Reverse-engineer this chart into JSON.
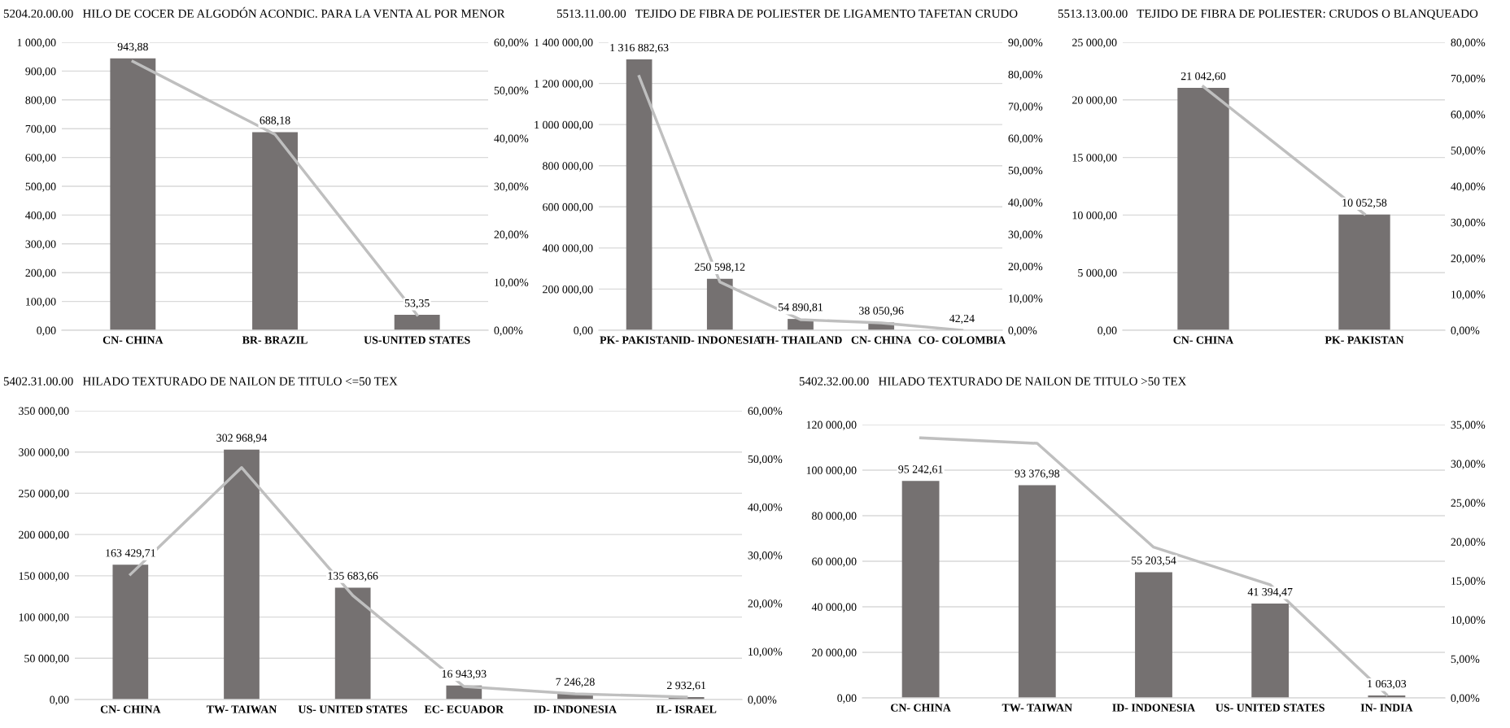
{
  "chart_data": [
    {
      "type": "bar",
      "title": "5204.20.00.00   HILO DE COCER DE ALGODÓN ACONDIC. PARA LA VENTA AL POR MENOR",
      "categories": [
        "CN- CHINA",
        "BR- BRAZIL",
        "US-UNITED STATES"
      ],
      "grid": "y",
      "ylim": [
        0,
        1000
      ],
      "yticks": [
        {
          "value": 0,
          "label": "0,00"
        },
        {
          "value": 100,
          "label": "100,00"
        },
        {
          "value": 200,
          "label": "200,00"
        },
        {
          "value": 300,
          "label": "300,00"
        },
        {
          "value": 400,
          "label": "400,00"
        },
        {
          "value": 500,
          "label": "500,00"
        },
        {
          "value": 600,
          "label": "600,00"
        },
        {
          "value": 700,
          "label": "700,00"
        },
        {
          "value": 800,
          "label": "800,00"
        },
        {
          "value": 900,
          "label": "900,00"
        },
        {
          "value": 1000,
          "label": "1 000,00"
        }
      ],
      "y2lim": [
        0,
        60
      ],
      "y2ticks": [
        {
          "value": 0,
          "label": "0,00%"
        },
        {
          "value": 10,
          "label": "10,00%"
        },
        {
          "value": 20,
          "label": "20,00%"
        },
        {
          "value": 30,
          "label": "30,00%"
        },
        {
          "value": 40,
          "label": "40,00%"
        },
        {
          "value": 50,
          "label": "50,00%"
        },
        {
          "value": 60,
          "label": "60,00%"
        }
      ],
      "series": [
        {
          "type": "bar",
          "color": "#757171",
          "values": [
            943.88,
            688.18,
            53.35
          ],
          "value_labels": [
            "943,88",
            "688,18",
            "53,35"
          ]
        },
        {
          "type": "line",
          "axis": "y2",
          "color": "#bfbfbf",
          "values": [
            56.0,
            40.8,
            3.2
          ]
        }
      ]
    },
    {
      "type": "bar",
      "title": "5513.11.00.00   TEJIDO DE FIBRA DE POLIESTER DE LIGAMENTO TAFETAN CRUDO",
      "categories": [
        "PK- PAKISTAN",
        "ID- INDONESIA",
        "TH- THAILAND",
        "CN- CHINA",
        "CO- COLOMBIA"
      ],
      "grid": "y",
      "ylim": [
        0,
        1400000
      ],
      "yticks": [
        {
          "value": 0,
          "label": "0,00"
        },
        {
          "value": 200000,
          "label": "200 000,00"
        },
        {
          "value": 400000,
          "label": "400 000,00"
        },
        {
          "value": 600000,
          "label": "600 000,00"
        },
        {
          "value": 800000,
          "label": "800 000,00"
        },
        {
          "value": 1000000,
          "label": "1 000 000,00"
        },
        {
          "value": 1200000,
          "label": "1 200 000,00"
        },
        {
          "value": 1400000,
          "label": "1 400 000,00"
        }
      ],
      "y2lim": [
        0,
        90
      ],
      "y2ticks": [
        {
          "value": 0,
          "label": "0,00%"
        },
        {
          "value": 10,
          "label": "10,00%"
        },
        {
          "value": 20,
          "label": "20,00%"
        },
        {
          "value": 30,
          "label": "30,00%"
        },
        {
          "value": 40,
          "label": "40,00%"
        },
        {
          "value": 50,
          "label": "50,00%"
        },
        {
          "value": 60,
          "label": "60,00%"
        },
        {
          "value": 70,
          "label": "70,00%"
        },
        {
          "value": 80,
          "label": "80,00%"
        },
        {
          "value": 90,
          "label": "90,00%"
        }
      ],
      "series": [
        {
          "type": "bar",
          "color": "#757171",
          "values": [
            1316882.63,
            250598.12,
            54890.81,
            38050.96,
            42.24
          ],
          "value_labels": [
            "1 316 882,63",
            "250 598,12",
            "54 890,81",
            "38 050,96",
            "42,24"
          ]
        },
        {
          "type": "line",
          "axis": "y2",
          "color": "#bfbfbf",
          "values": [
            79.3,
            15.1,
            3.3,
            2.3,
            0.0
          ]
        }
      ]
    },
    {
      "type": "bar",
      "title": "5513.13.00.00   TEJIDO DE FIBRA DE POLIESTER: CRUDOS O BLANQUEADO",
      "categories": [
        "CN- CHINA",
        "PK- PAKISTAN"
      ],
      "grid": "y",
      "ylim": [
        0,
        25000
      ],
      "yticks": [
        {
          "value": 0,
          "label": "0,00"
        },
        {
          "value": 5000,
          "label": "5 000,00"
        },
        {
          "value": 10000,
          "label": "10 000,00"
        },
        {
          "value": 15000,
          "label": "15 000,00"
        },
        {
          "value": 20000,
          "label": "20 000,00"
        },
        {
          "value": 25000,
          "label": "25 000,00"
        }
      ],
      "y2lim": [
        0,
        80
      ],
      "y2ticks": [
        {
          "value": 0,
          "label": "0,00%"
        },
        {
          "value": 10,
          "label": "10,00%"
        },
        {
          "value": 20,
          "label": "20,00%"
        },
        {
          "value": 30,
          "label": "30,00%"
        },
        {
          "value": 40,
          "label": "40,00%"
        },
        {
          "value": 50,
          "label": "50,00%"
        },
        {
          "value": 60,
          "label": "60,00%"
        },
        {
          "value": 70,
          "label": "70,00%"
        },
        {
          "value": 80,
          "label": "80,00%"
        }
      ],
      "series": [
        {
          "type": "bar",
          "color": "#757171",
          "values": [
            21042.6,
            10052.58
          ],
          "value_labels": [
            "21 042,60",
            "10 052,58"
          ]
        },
        {
          "type": "line",
          "axis": "y2",
          "color": "#bfbfbf",
          "values": [
            67.7,
            32.3
          ]
        }
      ]
    },
    {
      "type": "bar",
      "title": "5402.31.00.00   HILADO TEXTURADO DE NAILON DE TITULO <=50 TEX",
      "categories": [
        "CN- CHINA",
        "TW- TAIWAN",
        "US- UNITED STATES",
        "EC- ECUADOR",
        "ID- INDONESIA",
        "IL- ISRAEL"
      ],
      "grid": "y",
      "ylim": [
        0,
        350000
      ],
      "yticks": [
        {
          "value": 0,
          "label": "0,00"
        },
        {
          "value": 50000,
          "label": "50 000,00"
        },
        {
          "value": 100000,
          "label": "100 000,00"
        },
        {
          "value": 150000,
          "label": "150 000,00"
        },
        {
          "value": 200000,
          "label": "200 000,00"
        },
        {
          "value": 250000,
          "label": "250 000,00"
        },
        {
          "value": 300000,
          "label": "300 000,00"
        },
        {
          "value": 350000,
          "label": "350 000,00"
        }
      ],
      "y2lim": [
        0,
        60
      ],
      "y2ticks": [
        {
          "value": 0,
          "label": "0,00%"
        },
        {
          "value": 10,
          "label": "10,00%"
        },
        {
          "value": 20,
          "label": "20,00%"
        },
        {
          "value": 30,
          "label": "30,00%"
        },
        {
          "value": 40,
          "label": "40,00%"
        },
        {
          "value": 50,
          "label": "50,00%"
        },
        {
          "value": 60,
          "label": "60,00%"
        }
      ],
      "series": [
        {
          "type": "bar",
          "color": "#757171",
          "values": [
            163429.71,
            302968.94,
            135683.66,
            16943.93,
            7246.28,
            2932.61
          ],
          "value_labels": [
            "163 429,71",
            "302 968,94",
            "135 683,66",
            "16 943,93",
            "7 246,28",
            "2 932,61"
          ]
        },
        {
          "type": "line",
          "axis": "y2",
          "color": "#bfbfbf",
          "values": [
            26.0,
            48.2,
            21.6,
            2.7,
            1.2,
            0.5
          ]
        }
      ]
    },
    {
      "type": "bar",
      "title": "5402.32.00.00   HILADO TEXTURADO DE NAILON DE TITULO >50 TEX",
      "categories": [
        "CN- CHINA",
        "TW- TAIWAN",
        "ID- INDONESIA",
        "US- UNITED STATES",
        "IN- INDIA"
      ],
      "grid": "y",
      "ylim": [
        0,
        120000
      ],
      "yticks": [
        {
          "value": 0,
          "label": "0,00"
        },
        {
          "value": 20000,
          "label": "20 000,00"
        },
        {
          "value": 40000,
          "label": "40 000,00"
        },
        {
          "value": 60000,
          "label": "60 000,00"
        },
        {
          "value": 80000,
          "label": "80 000,00"
        },
        {
          "value": 100000,
          "label": "100 000,00"
        },
        {
          "value": 120000,
          "label": "120 000,00"
        }
      ],
      "y2lim": [
        0,
        35
      ],
      "y2ticks": [
        {
          "value": 0,
          "label": "0,00%"
        },
        {
          "value": 5,
          "label": "5,00%"
        },
        {
          "value": 10,
          "label": "10,00%"
        },
        {
          "value": 15,
          "label": "15,00%"
        },
        {
          "value": 20,
          "label": "20,00%"
        },
        {
          "value": 25,
          "label": "25,00%"
        },
        {
          "value": 30,
          "label": "30,00%"
        },
        {
          "value": 35,
          "label": "35,00%"
        }
      ],
      "series": [
        {
          "type": "bar",
          "color": "#757171",
          "values": [
            95242.61,
            93376.98,
            55203.54,
            41394.47,
            1063.03
          ],
          "value_labels": [
            "95 242,61",
            "93 376,98",
            "55 203,54",
            "41 394,47",
            "1 063,03"
          ]
        },
        {
          "type": "line",
          "axis": "y2",
          "color": "#bfbfbf",
          "values": [
            33.3,
            32.6,
            19.3,
            14.5,
            0.4
          ]
        }
      ]
    }
  ]
}
